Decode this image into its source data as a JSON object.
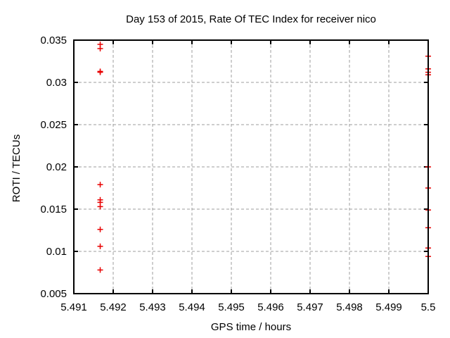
{
  "chart_data": {
    "type": "scatter",
    "title": "Day 153 of 2015, Rate Of TEC Index for receiver nico",
    "xlabel": "GPS time / hours",
    "ylabel": "ROTI / TECUs",
    "xlim": [
      5.491,
      5.5
    ],
    "ylim": [
      0.005,
      0.035
    ],
    "xtick_labels": [
      "5.491",
      "5.492",
      "5.493",
      "5.494",
      "5.495",
      "5.496",
      "5.497",
      "5.498",
      "5.499",
      "5.5"
    ],
    "ytick_labels": [
      "0.005",
      "0.01",
      "0.015",
      "0.02",
      "0.025",
      "0.03",
      "0.035"
    ],
    "grid": "dashed-both-axes",
    "legend_position": "none",
    "marker": "plus",
    "colors": {
      "marker": "#e80000",
      "grid": "#9e9e9e",
      "axis": "#000000",
      "text": "#000000",
      "background": "#ffffff"
    },
    "series": [
      {
        "name": "ROTI",
        "points": [
          [
            5.49167,
            0.0345
          ],
          [
            5.49167,
            0.034
          ],
          [
            5.49167,
            0.0313
          ],
          [
            5.49167,
            0.0312
          ],
          [
            5.49167,
            0.0179
          ],
          [
            5.49167,
            0.0161
          ],
          [
            5.49167,
            0.0158
          ],
          [
            5.49167,
            0.0153
          ],
          [
            5.49167,
            0.0126
          ],
          [
            5.49167,
            0.0106
          ],
          [
            5.49167,
            0.0078
          ],
          [
            5.5,
            0.0331
          ],
          [
            5.5,
            0.0316
          ],
          [
            5.5,
            0.0312
          ],
          [
            5.5,
            0.0309
          ],
          [
            5.5,
            0.02
          ],
          [
            5.5,
            0.0175
          ],
          [
            5.5,
            0.0149
          ],
          [
            5.5,
            0.0128
          ],
          [
            5.5,
            0.0104
          ],
          [
            5.5,
            0.0094
          ]
        ]
      }
    ]
  }
}
